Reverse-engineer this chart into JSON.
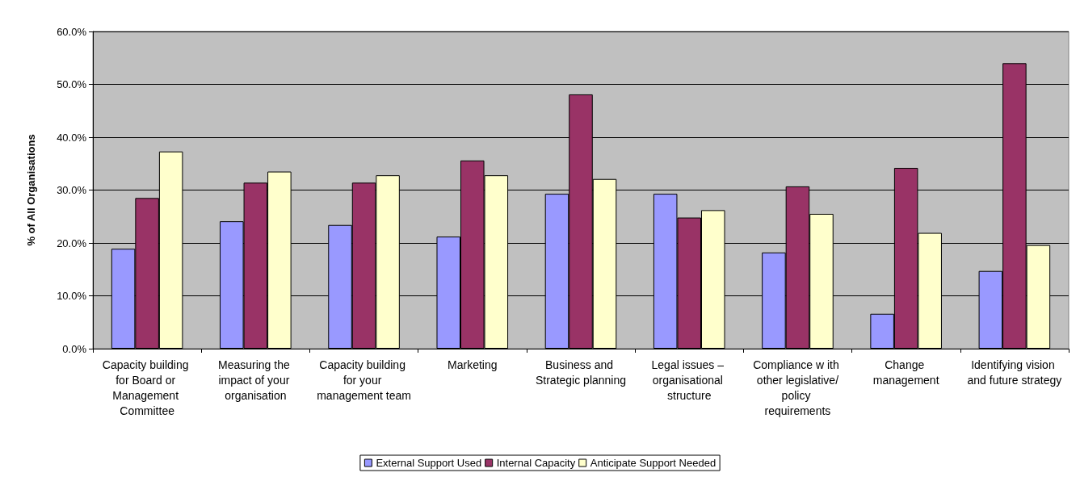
{
  "chart_data": {
    "type": "bar",
    "ylabel": "% of All Organisations",
    "categories": [
      "Capacity building for Board or Management Committee",
      "Measuring the impact of your organisation",
      "Capacity building for your management team",
      "Marketing",
      "Business and Strategic planning",
      "Legal issues – organisational structure",
      "Compliance w ith other legislative/policy requirements",
      "Change management",
      "Identifying vision and future strategy"
    ],
    "series": [
      {
        "name": "External Support Used",
        "color": "#9999ff",
        "values": [
          18.9,
          24.1,
          23.4,
          21.2,
          29.3,
          29.3,
          18.2,
          6.6,
          14.7
        ]
      },
      {
        "name": "Internal Capacity",
        "color": "#993366",
        "values": [
          28.5,
          31.4,
          31.4,
          35.6,
          48.1,
          24.8,
          30.7,
          34.2,
          54.0
        ]
      },
      {
        "name": "Anticipate Support Needed",
        "color": "#ffffcc",
        "values": [
          37.3,
          33.5,
          32.8,
          32.8,
          32.1,
          26.2,
          25.5,
          21.9,
          19.6
        ]
      }
    ],
    "ylim": [
      0,
      60
    ],
    "yticks": [
      {
        "value": 0,
        "label": "0.0%"
      },
      {
        "value": 10,
        "label": "10.0%"
      },
      {
        "value": 20,
        "label": "20.0%"
      },
      {
        "value": 30,
        "label": "30.0%"
      },
      {
        "value": 40,
        "label": "40.0%"
      },
      {
        "value": 50,
        "label": "50.0%"
      },
      {
        "value": 60,
        "label": "60.0%"
      }
    ],
    "grid": "y",
    "legend": "bottom"
  }
}
